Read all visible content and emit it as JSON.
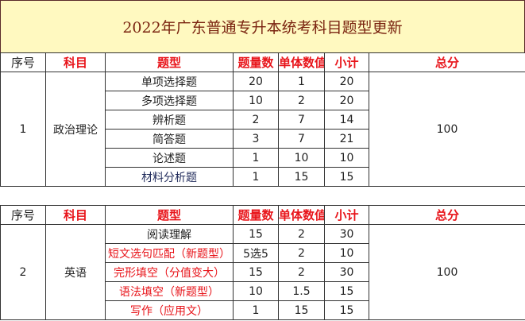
{
  "title": "2022年广东普通专升本统考科目题型更新",
  "headers": [
    "序号",
    "科目",
    "题型",
    "题量数",
    "单体数值",
    "小计",
    "总分"
  ],
  "tables": [
    {
      "index": "1",
      "subject": "政治理论",
      "total": "100",
      "rows": [
        {
          "type": "单项选择题",
          "count": "20",
          "unit": "1",
          "subtotal": "20",
          "highlight": false
        },
        {
          "type": "多项选择题",
          "count": "10",
          "unit": "2",
          "subtotal": "20",
          "highlight": false
        },
        {
          "type": "辨析题",
          "count": "2",
          "unit": "7",
          "subtotal": "14",
          "highlight": false
        },
        {
          "type": "简答题",
          "count": "3",
          "unit": "7",
          "subtotal": "21",
          "highlight": false
        },
        {
          "type": "论述题",
          "count": "1",
          "unit": "10",
          "subtotal": "10",
          "highlight": false
        },
        {
          "type": "材料分析题",
          "count": "1",
          "unit": "15",
          "subtotal": "15",
          "highlight": false
        }
      ]
    },
    {
      "index": "2",
      "subject": "英语",
      "total": "100",
      "rows": [
        {
          "type": "阅读理解",
          "count": "15",
          "unit": "2",
          "subtotal": "30",
          "highlight": false
        },
        {
          "type": "短文选句匹配（新题型）",
          "count": "5选5",
          "unit": "2",
          "subtotal": "10",
          "highlight": true
        },
        {
          "type": "完形填空（分值变大）",
          "count": "15",
          "unit": "2",
          "subtotal": "30",
          "highlight": true
        },
        {
          "type": "语法填空（新题型）",
          "count": "10",
          "unit": "1.5",
          "subtotal": "15",
          "highlight": true
        },
        {
          "type": "写作（应用文）",
          "count": "1",
          "unit": "15",
          "subtotal": "15",
          "highlight": true
        }
      ]
    }
  ],
  "colors": {
    "header_text": "#e8141a",
    "title_text": "#7a2410",
    "title_bg": "#fff9c0",
    "highlight": "#e8141a"
  }
}
